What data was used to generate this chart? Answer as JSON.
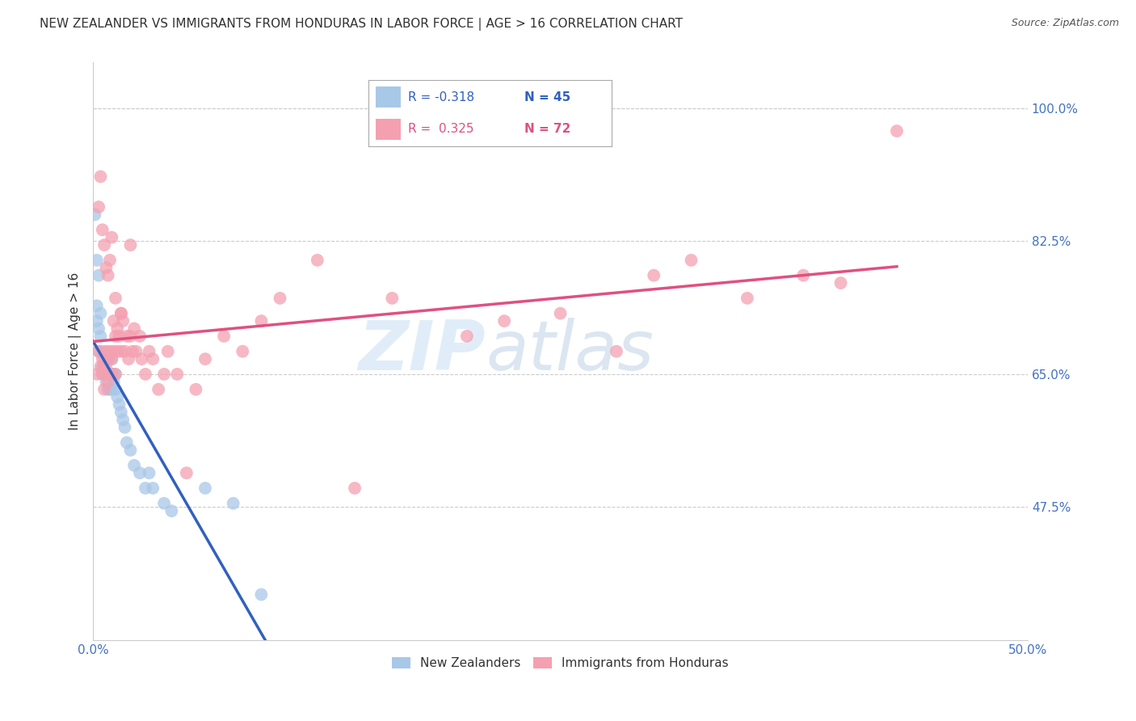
{
  "title": "NEW ZEALANDER VS IMMIGRANTS FROM HONDURAS IN LABOR FORCE | AGE > 16 CORRELATION CHART",
  "source": "Source: ZipAtlas.com",
  "ylabel": "In Labor Force | Age > 16",
  "xlim": [
    0.0,
    0.5
  ],
  "ylim": [
    0.3,
    1.06
  ],
  "xticks": [
    0.0,
    0.1,
    0.2,
    0.3,
    0.4,
    0.5
  ],
  "xticklabels": [
    "0.0%",
    "",
    "",
    "",
    "",
    "50.0%"
  ],
  "yticks": [
    0.475,
    0.65,
    0.825,
    1.0
  ],
  "yticklabels": [
    "47.5%",
    "65.0%",
    "82.5%",
    "100.0%"
  ],
  "legend_r1": "R = -0.318",
  "legend_n1": "N = 45",
  "legend_r2": "R =  0.325",
  "legend_n2": "N = 72",
  "blue_color": "#a8c8e8",
  "pink_color": "#f4a0b0",
  "blue_line_color": "#3060c0",
  "pink_line_color": "#e05080",
  "nz_x": [
    0.001,
    0.002,
    0.002,
    0.003,
    0.003,
    0.004,
    0.004,
    0.005,
    0.005,
    0.005,
    0.006,
    0.006,
    0.007,
    0.007,
    0.008,
    0.008,
    0.008,
    0.009,
    0.009,
    0.01,
    0.01,
    0.01,
    0.011,
    0.011,
    0.012,
    0.012,
    0.013,
    0.014,
    0.015,
    0.016,
    0.017,
    0.018,
    0.02,
    0.022,
    0.025,
    0.028,
    0.03,
    0.032,
    0.038,
    0.042,
    0.002,
    0.003,
    0.06,
    0.075,
    0.09
  ],
  "nz_y": [
    0.86,
    0.72,
    0.74,
    0.71,
    0.68,
    0.7,
    0.73,
    0.66,
    0.68,
    0.65,
    0.65,
    0.67,
    0.66,
    0.64,
    0.65,
    0.67,
    0.63,
    0.65,
    0.63,
    0.65,
    0.63,
    0.67,
    0.64,
    0.65,
    0.63,
    0.65,
    0.62,
    0.61,
    0.6,
    0.59,
    0.58,
    0.56,
    0.55,
    0.53,
    0.52,
    0.5,
    0.52,
    0.5,
    0.48,
    0.47,
    0.8,
    0.78,
    0.5,
    0.48,
    0.36
  ],
  "hn_x": [
    0.002,
    0.003,
    0.004,
    0.005,
    0.005,
    0.006,
    0.006,
    0.007,
    0.007,
    0.008,
    0.008,
    0.009,
    0.009,
    0.01,
    0.01,
    0.011,
    0.011,
    0.012,
    0.012,
    0.013,
    0.013,
    0.014,
    0.015,
    0.015,
    0.016,
    0.017,
    0.018,
    0.019,
    0.02,
    0.021,
    0.022,
    0.023,
    0.025,
    0.026,
    0.028,
    0.03,
    0.032,
    0.035,
    0.038,
    0.04,
    0.045,
    0.05,
    0.055,
    0.06,
    0.07,
    0.08,
    0.09,
    0.1,
    0.12,
    0.14,
    0.16,
    0.2,
    0.22,
    0.25,
    0.28,
    0.3,
    0.32,
    0.35,
    0.38,
    0.4,
    0.003,
    0.004,
    0.005,
    0.006,
    0.007,
    0.008,
    0.009,
    0.01,
    0.012,
    0.015,
    0.02,
    0.43
  ],
  "hn_y": [
    0.65,
    0.68,
    0.66,
    0.65,
    0.67,
    0.63,
    0.66,
    0.65,
    0.68,
    0.64,
    0.67,
    0.65,
    0.68,
    0.65,
    0.67,
    0.72,
    0.68,
    0.7,
    0.65,
    0.68,
    0.71,
    0.7,
    0.73,
    0.68,
    0.72,
    0.68,
    0.7,
    0.67,
    0.7,
    0.68,
    0.71,
    0.68,
    0.7,
    0.67,
    0.65,
    0.68,
    0.67,
    0.63,
    0.65,
    0.68,
    0.65,
    0.52,
    0.63,
    0.67,
    0.7,
    0.68,
    0.72,
    0.75,
    0.8,
    0.5,
    0.75,
    0.7,
    0.72,
    0.73,
    0.68,
    0.78,
    0.8,
    0.75,
    0.78,
    0.77,
    0.87,
    0.91,
    0.84,
    0.82,
    0.79,
    0.78,
    0.8,
    0.83,
    0.75,
    0.73,
    0.82,
    0.97
  ],
  "watermark_zip": "ZIP",
  "watermark_atlas": "atlas",
  "background_color": "#ffffff",
  "grid_color": "#cccccc",
  "axis_color": "#4472c4",
  "title_color": "#333333",
  "watermark_color": "#ddeeff",
  "title_fontsize": 11,
  "label_fontsize": 11,
  "tick_fontsize": 11
}
